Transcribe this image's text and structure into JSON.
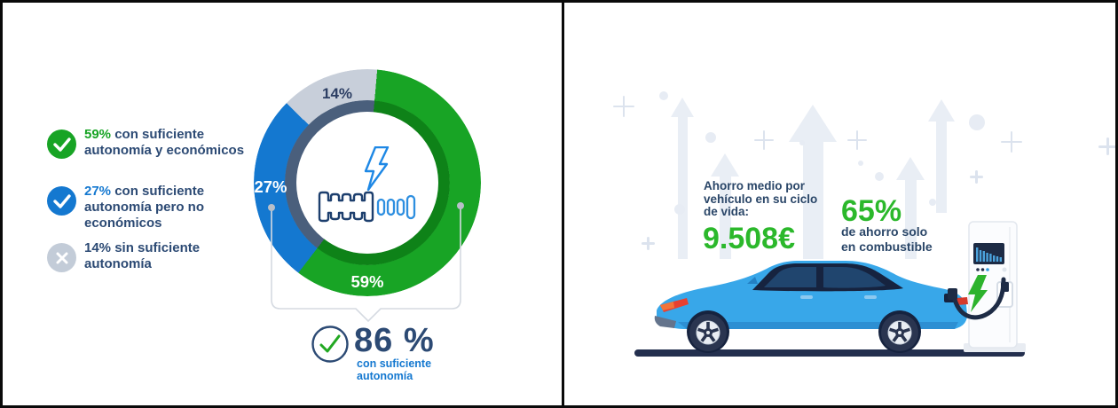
{
  "chart_data": {
    "type": "pie",
    "subtype": "donut",
    "start_angle_deg": 5,
    "segments": [
      {
        "label": "con suficiente autonomía y económicos",
        "value": 59,
        "display": "59%",
        "color": "#18a425",
        "inner_color": "#0e8218",
        "label_color": "#ffffff"
      },
      {
        "label": "con suficiente autonomía pero no económicos",
        "value": 27,
        "display": "27%",
        "color": "#1478d0",
        "inner_color": "#4a5f7c",
        "label_color": "#ffffff"
      },
      {
        "label": "sin suficiente autonomía",
        "value": 14,
        "display": "14%",
        "color": "#c8cfda",
        "inner_color": "#4a5f7c",
        "label_color": "#2c3e63"
      }
    ],
    "center_icons": [
      "lightning-icon",
      "engine-battery-icon"
    ],
    "annotation": {
      "value": "86 %",
      "label": "con suficiente autonomía"
    }
  },
  "left_panel": {
    "legend": [
      {
        "percent": "59%",
        "percent_color": "#18a425",
        "icon": "check",
        "icon_bg": "#18a425",
        "line1": "con suficiente",
        "line2": "autonomía y económicos",
        "line3": ""
      },
      {
        "percent": "27%",
        "percent_color": "#1478d0",
        "icon": "check",
        "icon_bg": "#1478d0",
        "line1": "con suficiente",
        "line2": "autonomía pero no",
        "line3": "económicos"
      },
      {
        "percent": "14%",
        "percent_color": "#2c4a74",
        "icon": "cross",
        "icon_bg": "#c3ccd8",
        "line1": "sin suficiente",
        "line2": "autonomía",
        "line3": ""
      }
    ],
    "donut_labels": {
      "gray": "14%",
      "blue": "27%",
      "green": "59%"
    },
    "callout": {
      "value": "86 %",
      "sub_line1": "con suficiente",
      "sub_line2": "autonomía"
    }
  },
  "right_panel": {
    "stat_lifecycle": {
      "intro_line1": "Ahorro medio por",
      "intro_line2": "vehículo en su ciclo",
      "intro_line3": "de vida:",
      "value": "9.508€",
      "value_color": "#2bb82b"
    },
    "stat_fuel": {
      "value": "65%",
      "value_color": "#2bb82b",
      "line1": "de ahorro solo",
      "line2": "en combustible"
    }
  }
}
